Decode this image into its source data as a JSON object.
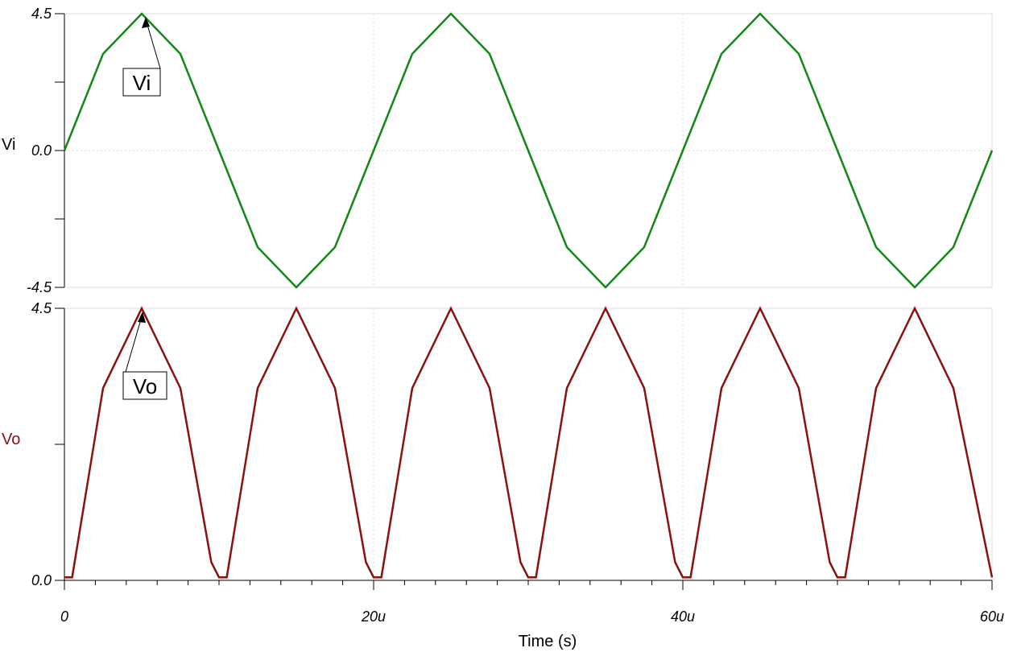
{
  "chart_data": [
    {
      "type": "line",
      "xlabel": "Time (s)",
      "ylabel": "Vi",
      "ylim": [
        -4.5,
        4.5
      ],
      "yticks": [
        "4.5",
        "0.0",
        "-4.5"
      ],
      "grid": true,
      "series": [
        {
          "name": "Vi",
          "color": "#118811",
          "description_of_values": "sine wave, amplitude 4.5 V, period 20u",
          "x": [
            0,
            2.5,
            5,
            7.5,
            10,
            12.5,
            15,
            17.5,
            20,
            22.5,
            25,
            27.5,
            30,
            32.5,
            35,
            37.5,
            40,
            42.5,
            45,
            47.5,
            50,
            52.5,
            55,
            57.5,
            60
          ],
          "y": [
            0,
            3.18,
            4.5,
            3.18,
            0,
            -3.18,
            -4.5,
            -3.18,
            0,
            3.18,
            4.5,
            3.18,
            0,
            -3.18,
            -4.5,
            -3.18,
            0,
            3.18,
            4.5,
            3.18,
            0,
            -3.18,
            -4.5,
            -3.18,
            0
          ]
        }
      ],
      "annotation": "Vi"
    },
    {
      "type": "line",
      "xlabel": "Time (s)",
      "ylabel": "Vo",
      "ylim": [
        0.0,
        4.5
      ],
      "yticks": [
        "4.5",
        "0.0"
      ],
      "xlim": [
        0,
        60
      ],
      "xticks": [
        "0",
        "20u",
        "40u",
        "60u"
      ],
      "grid": true,
      "series": [
        {
          "name": "Vo",
          "color": "#8b1010",
          "x": [
            0,
            0.5,
            2.5,
            5,
            7.5,
            9.5,
            10,
            10.5,
            12.5,
            15,
            17.5,
            19.5,
            20,
            20.5,
            22.5,
            25,
            27.5,
            29.5,
            30,
            30.5,
            32.5,
            35,
            37.5,
            39.5,
            40,
            40.5,
            42.5,
            45,
            47.5,
            49.5,
            50,
            50.5,
            52.5,
            55,
            57.5,
            60
          ],
          "y": [
            0.05,
            0.05,
            3.18,
            4.5,
            3.18,
            0.3,
            0.05,
            0.05,
            3.18,
            4.5,
            3.18,
            0.3,
            0.05,
            0.05,
            3.18,
            4.5,
            3.18,
            0.3,
            0.05,
            0.05,
            3.18,
            4.5,
            3.18,
            0.3,
            0.05,
            0.05,
            3.18,
            4.5,
            3.18,
            0.3,
            0.05,
            0.05,
            3.18,
            4.5,
            3.18,
            0.05
          ]
        }
      ],
      "annotation": "Vo"
    }
  ]
}
